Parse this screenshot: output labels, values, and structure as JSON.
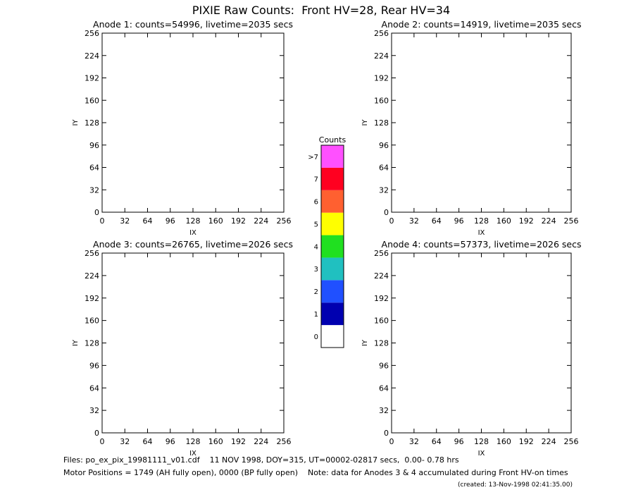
{
  "title": "PIXIE Raw Counts:  Front HV=28, Rear HV=34",
  "chart_data": [
    {
      "type": "heatmap",
      "title": "Anode 1: counts=54996, livetime=2035 secs",
      "x_label": "IX",
      "y_label": "IY",
      "xlim": [
        0,
        256
      ],
      "ylim": [
        0,
        256
      ],
      "xticks": [
        0,
        32,
        64,
        96,
        128,
        160,
        192,
        224,
        256
      ],
      "yticks": [
        0,
        32,
        64,
        96,
        128,
        160,
        192,
        224,
        256
      ]
    },
    {
      "type": "heatmap",
      "title": "Anode 2: counts=14919, livetime=2035 secs",
      "x_label": "IX",
      "y_label": "IY",
      "xlim": [
        0,
        256
      ],
      "ylim": [
        0,
        256
      ],
      "xticks": [
        0,
        32,
        64,
        96,
        128,
        160,
        192,
        224,
        256
      ],
      "yticks": [
        0,
        32,
        64,
        96,
        128,
        160,
        192,
        224,
        256
      ]
    },
    {
      "type": "heatmap",
      "title": "Anode 3: counts=26765, livetime=2026 secs",
      "x_label": "IX",
      "y_label": "IY",
      "xlim": [
        0,
        256
      ],
      "ylim": [
        0,
        256
      ],
      "xticks": [
        0,
        32,
        64,
        96,
        128,
        160,
        192,
        224,
        256
      ],
      "yticks": [
        0,
        32,
        64,
        96,
        128,
        160,
        192,
        224,
        256
      ]
    },
    {
      "type": "heatmap",
      "title": "Anode 4: counts=57373, livetime=2026 secs",
      "x_label": "IX",
      "y_label": "IY",
      "xlim": [
        0,
        256
      ],
      "ylim": [
        0,
        256
      ],
      "xticks": [
        0,
        32,
        64,
        96,
        128,
        160,
        192,
        224,
        256
      ],
      "yticks": [
        0,
        32,
        64,
        96,
        128,
        160,
        192,
        224,
        256
      ]
    }
  ],
  "colorbar": {
    "title": "Counts",
    "labels": [
      "0",
      "1",
      "2",
      "3",
      "4",
      "5",
      "6",
      "7",
      ">7"
    ],
    "colors": [
      "#ffffff",
      "#0000b0",
      "#2050ff",
      "#20c0c0",
      "#20e020",
      "#ffff00",
      "#ff6030",
      "#ff0020",
      "#ff50ff"
    ]
  },
  "footer": [
    "Files: po_ex_pix_19981111_v01.cdf    11 NOV 1998, DOY=315, UT=00002-02817 secs,  0.00- 0.78 hrs",
    "Motor Positions = 1749 (AH fully open), 0000 (BP fully open)    Note: data for Anodes 3 & 4 accumulated during Front HV-on times",
    "(created: 13-Nov-1998 02:41:35.00)"
  ]
}
